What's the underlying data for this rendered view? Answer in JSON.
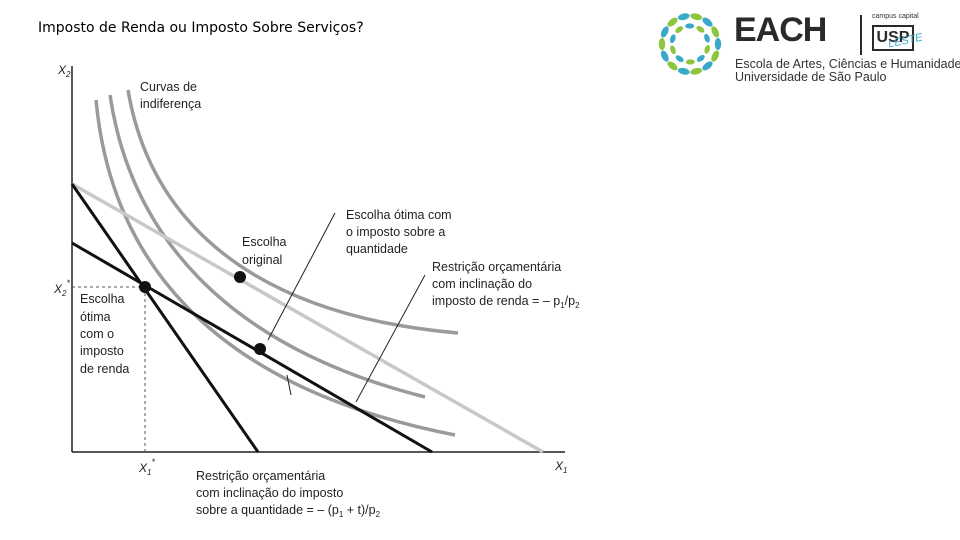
{
  "slide": {
    "title": "Imposto de Renda ou Imposto Sobre Serviços?"
  },
  "logo": {
    "wordmark": "EACH",
    "campus": "campus capital",
    "usp": "USP",
    "leste": "LESTE",
    "line1": "Escola de Artes, Ciências e Humanidades",
    "line2": "Universidade de São Paulo"
  },
  "diagram": {
    "y_axis_label": "X",
    "y_axis_sub": "2",
    "x_axis_label": "X",
    "x_axis_sub": "1",
    "x2_star": "X",
    "x2_star_sub": "2",
    "x1_star": "X",
    "x1_star_sub": "1",
    "star": "*",
    "curvas_l1": "Curvas de",
    "curvas_l2": "indiferença",
    "original_l1": "Escolha",
    "original_l2": "original",
    "qty_choice_l1": "Escolha ótima com",
    "qty_choice_l2": "o imposto sobre a",
    "qty_choice_l3": "quantidade",
    "income_line_l1": "Restrição orçamentária",
    "income_line_l2": "com inclinação do",
    "income_line_l3": "imposto de renda = – p",
    "income_line_s1": "1",
    "income_line_slash": "/p",
    "income_line_s2": "2",
    "income_choice_l1": "Escolha",
    "income_choice_l2": "ótima",
    "income_choice_l3": "com o",
    "income_choice_l4": "imposto",
    "income_choice_l5": "de renda",
    "qty_line_l1": "Restrição orçamentária",
    "qty_line_l2": "com inclinação do imposto",
    "qty_line_l3": "sobre a quantidade = – (p",
    "qty_line_s1": "1",
    "qty_line_mid": " + t)/p",
    "qty_line_s2": "2"
  },
  "colors": {
    "axis": "#231f20",
    "budget_dark": "#111111",
    "budget_light": "#c8c8c8",
    "curves": "#9a9a9a",
    "dashed": "#555555",
    "logo_teal": "#3aa8c8",
    "logo_green": "#8cc63f"
  }
}
